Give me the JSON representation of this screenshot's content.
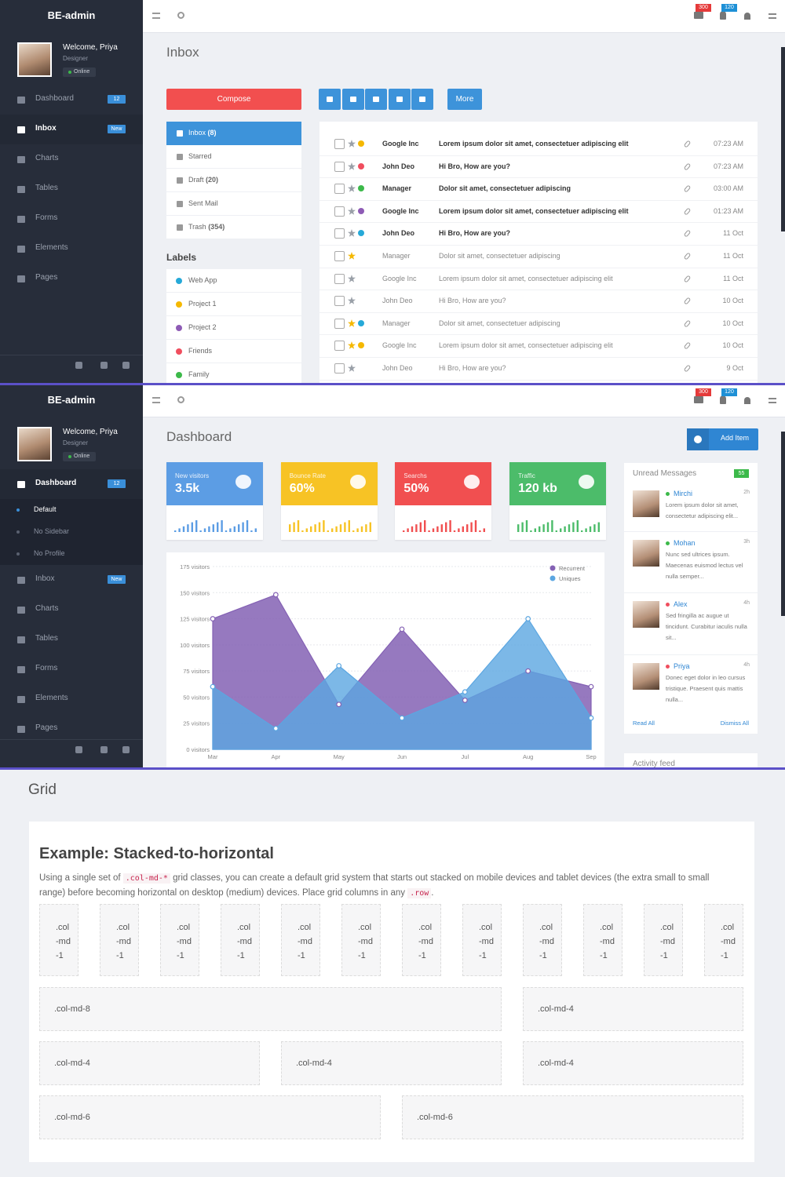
{
  "inbox_panel": {
    "sidebar": {
      "brand": "BE-admin",
      "user": {
        "welcome": "Welcome, Priya",
        "role": "Designer",
        "status": "Online"
      },
      "nav": [
        {
          "label": "Dashboard",
          "badge": "12"
        },
        {
          "label": "Inbox",
          "badge": "New",
          "active": true
        },
        {
          "label": "Charts"
        },
        {
          "label": "Tables"
        },
        {
          "label": "Forms"
        },
        {
          "label": "Elements"
        },
        {
          "label": "Pages"
        }
      ]
    },
    "header_badges": [
      "300",
      "120"
    ],
    "title": "Inbox",
    "compose": "Compose",
    "toolbar_more": "More",
    "folders": [
      {
        "label": "Inbox",
        "count": "(8)",
        "active": true
      },
      {
        "label": "Starred"
      },
      {
        "label": "Draft",
        "count": "(20)"
      },
      {
        "label": "Sent Mail"
      },
      {
        "label": "Trash",
        "count": "(354)"
      }
    ],
    "labels_title": "Labels",
    "labels": [
      {
        "name": "Web App",
        "color": "#26a9d8"
      },
      {
        "name": "Project 1",
        "color": "#f5b800"
      },
      {
        "name": "Project 2",
        "color": "#8e5bb5"
      },
      {
        "name": "Friends",
        "color": "#f04e5e"
      },
      {
        "name": "Family",
        "color": "#3cb94a"
      }
    ],
    "messages": [
      {
        "from": "Google Inc",
        "subject": "Lorem ipsum dolor sit amet, consectetuer adipiscing elit",
        "time": "07:23 AM",
        "unread": true,
        "star": "#9aa0a8",
        "dot": "#f5b800"
      },
      {
        "from": "John Deo",
        "subject": "Hi Bro, How are you?",
        "time": "07:23 AM",
        "unread": true,
        "star": "#9aa0a8",
        "dot": "#f04e5e"
      },
      {
        "from": "Manager",
        "subject": "Dolor sit amet, consectetuer adipiscing",
        "time": "03:00 AM",
        "unread": true,
        "star": "#9aa0a8",
        "dot": "#3cb94a"
      },
      {
        "from": "Google Inc",
        "subject": "Lorem ipsum dolor sit amet, consectetuer adipiscing elit",
        "time": "01:23 AM",
        "unread": true,
        "star": "#9aa0a8",
        "dot": "#8e5bb5"
      },
      {
        "from": "John Deo",
        "subject": "Hi Bro, How are you?",
        "time": "11 Oct",
        "unread": true,
        "star": "#9aa0a8",
        "dot": "#26a9d8"
      },
      {
        "from": "Manager",
        "subject": "Dolor sit amet, consectetuer adipiscing",
        "time": "11 Oct",
        "unread": false,
        "star": "#f5b800"
      },
      {
        "from": "Google Inc",
        "subject": "Lorem ipsum dolor sit amet, consectetuer adipiscing elit",
        "time": "11 Oct",
        "unread": false,
        "star": "#9aa0a8"
      },
      {
        "from": "John Deo",
        "subject": "Hi Bro, How are you?",
        "time": "10 Oct",
        "unread": false,
        "star": "#9aa0a8"
      },
      {
        "from": "Manager",
        "subject": "Dolor sit amet, consectetuer adipiscing",
        "time": "10 Oct",
        "unread": false,
        "star": "#f5b800",
        "dot": "#26a9d8"
      },
      {
        "from": "Google Inc",
        "subject": "Lorem ipsum dolor sit amet, consectetuer adipiscing elit",
        "time": "10 Oct",
        "unread": false,
        "star": "#f5b800",
        "dot": "#f5b800"
      },
      {
        "from": "John Deo",
        "subject": "Hi Bro, How are you?",
        "time": "9 Oct",
        "unread": false,
        "star": "#9aa0a8"
      }
    ]
  },
  "dashboard_panel": {
    "sidebar": {
      "brand": "BE-admin",
      "user": {
        "welcome": "Welcome, Priya",
        "role": "Designer",
        "status": "Online"
      },
      "nav": [
        {
          "label": "Dashboard",
          "badge": "12",
          "active": true,
          "sub": [
            "Default",
            "No Sidebar",
            "No Profile"
          ]
        },
        {
          "label": "Inbox",
          "badge": "New"
        },
        {
          "label": "Charts"
        },
        {
          "label": "Tables"
        },
        {
          "label": "Forms"
        },
        {
          "label": "Elements"
        },
        {
          "label": "Pages"
        }
      ]
    },
    "header_badges": [
      "300",
      "120"
    ],
    "title": "Dashboard",
    "add_item": "Add Item",
    "stats": [
      {
        "label": "New visitors",
        "value": "3.5k",
        "color": "#5c9de4"
      },
      {
        "label": "Bounce Rate",
        "value": "60%",
        "color": "#f7c325"
      },
      {
        "label": "Searchs",
        "value": "50%",
        "color": "#f14f50"
      },
      {
        "label": "Traffic",
        "value": "120 kb",
        "color": "#4cbc6a"
      }
    ],
    "unread": {
      "title": "Unread Messages",
      "count": "55",
      "items": [
        {
          "name": "Mirchi",
          "time": "2h",
          "text": "Lorem ipsum dolor sit amet, consectetur adipiscing elit...",
          "status_color": "#3cb94a"
        },
        {
          "name": "Mohan",
          "time": "3h",
          "text": "Nunc sed ultrices ipsum. Maecenas euismod lectus vel nulla semper...",
          "status_color": "#3cb94a"
        },
        {
          "name": "Alex",
          "time": "4h",
          "text": "Sed fringilla ac augue ut tincidunt. Curabitur iaculis nulla sit...",
          "status_color": "#f04e5e"
        },
        {
          "name": "Priya",
          "time": "4h",
          "text": "Donec eget dolor in leo cursus tristique. Praesent quis mattis nulla...",
          "status_color": "#f04e5e"
        }
      ],
      "read_all": "Read All",
      "dismiss_all": "Dismiss All"
    },
    "activity_title": "Activity feed"
  },
  "chart_data": {
    "type": "area",
    "categories": [
      "Mar",
      "Apr",
      "May",
      "Jun",
      "Jul",
      "Aug",
      "Sep"
    ],
    "series": [
      {
        "name": "Recurrent",
        "color": "#8461b4",
        "values": [
          125,
          148,
          43,
          115,
          47,
          75,
          60
        ]
      },
      {
        "name": "Uniques",
        "color": "#5ba6e1",
        "values": [
          60,
          20,
          80,
          30,
          55,
          125,
          30
        ]
      }
    ],
    "ylim": [
      0,
      175
    ],
    "yticks": [
      {
        "value": 0,
        "label": "0 visitors"
      },
      {
        "value": 25,
        "label": "25 visitors"
      },
      {
        "value": 50,
        "label": "50 visitors"
      },
      {
        "value": 75,
        "label": "75 visitors"
      },
      {
        "value": 100,
        "label": "100 visitors"
      },
      {
        "value": 125,
        "label": "125 visitors"
      },
      {
        "value": 150,
        "label": "150 visitors"
      },
      {
        "value": 175,
        "label": "175 visitors"
      }
    ],
    "grid": true
  },
  "grid_panel": {
    "title": "Grid",
    "heading": "Example: Stacked-to-horizontal",
    "paragraph": [
      {
        "text": "Using a single set of "
      },
      {
        "text": ".col-md-*",
        "code": true
      },
      {
        "text": " grid classes, you can create a default grid system that starts out stacked on mobile devices and tablet devices (the extra small to small range) before becoming horizontal on desktop (medium) devices. Place grid columns in any "
      },
      {
        "text": ".row",
        "code": true
      },
      {
        "text": "."
      }
    ],
    "rows": [
      [
        ".col-md-1",
        ".col-md-1",
        ".col-md-1",
        ".col-md-1",
        ".col-md-1",
        ".col-md-1",
        ".col-md-1",
        ".col-md-1",
        ".col-md-1",
        ".col-md-1",
        ".col-md-1",
        ".col-md-1"
      ],
      [
        ".col-md-8",
        ".col-md-4"
      ],
      [
        ".col-md-4",
        ".col-md-4",
        ".col-md-4"
      ],
      [
        ".col-md-6",
        ".col-md-6"
      ]
    ]
  }
}
